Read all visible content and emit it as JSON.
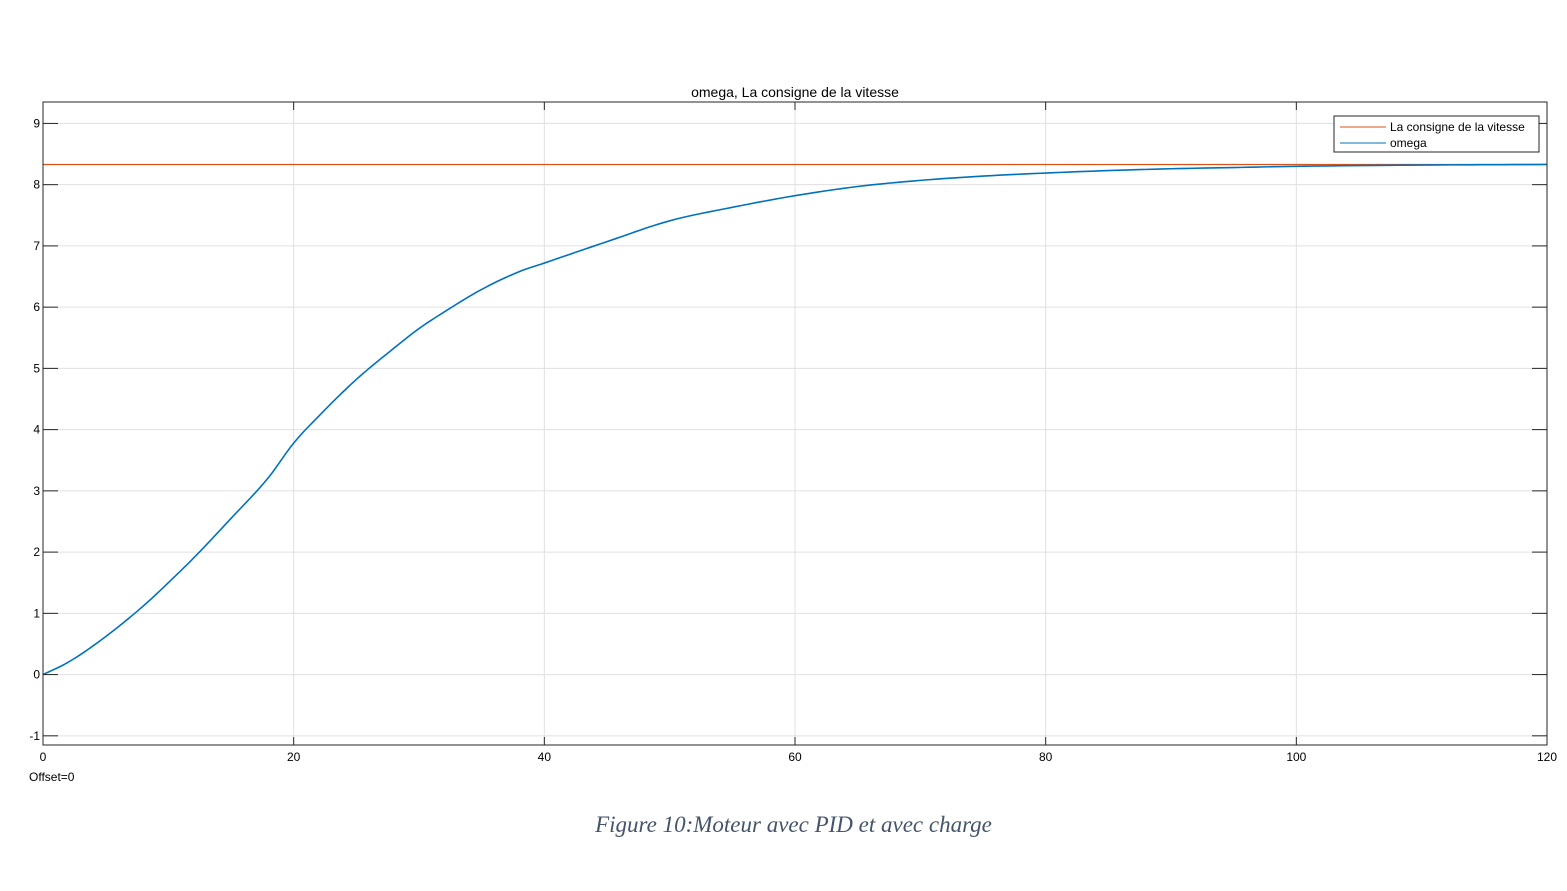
{
  "chart_data": {
    "type": "line",
    "title": "omega, La consigne de la vitesse",
    "xlabel": "",
    "ylabel": "",
    "xlim": [
      0,
      120
    ],
    "ylim": [
      -1.15,
      9.35
    ],
    "x_ticks": [
      0,
      20,
      40,
      60,
      80,
      100,
      120
    ],
    "y_ticks": [
      -1,
      0,
      1,
      2,
      3,
      4,
      5,
      6,
      7,
      8,
      9
    ],
    "grid": true,
    "legend_position": "top-right",
    "offset_label": "Offset=0",
    "series": [
      {
        "name": "La consigne de la vitesse",
        "color": "#d95319",
        "x": [
          0,
          120
        ],
        "y": [
          8.33,
          8.33
        ]
      },
      {
        "name": "omega",
        "color": "#0072bd",
        "x": [
          0,
          2,
          5,
          8,
          10,
          12,
          15,
          18,
          20,
          22,
          25,
          28,
          30,
          32,
          35,
          38,
          40,
          45,
          50,
          55,
          60,
          65,
          70,
          75,
          80,
          85,
          90,
          95,
          100,
          110,
          120
        ],
        "y": [
          0,
          0.2,
          0.62,
          1.12,
          1.5,
          1.9,
          2.55,
          3.22,
          3.78,
          4.22,
          4.82,
          5.33,
          5.65,
          5.92,
          6.29,
          6.58,
          6.72,
          7.07,
          7.41,
          7.63,
          7.82,
          7.97,
          8.07,
          8.14,
          8.19,
          8.23,
          8.26,
          8.28,
          8.3,
          8.32,
          8.33
        ]
      }
    ]
  },
  "figure_caption": "Figure 10:Moteur avec PID et avec charge"
}
